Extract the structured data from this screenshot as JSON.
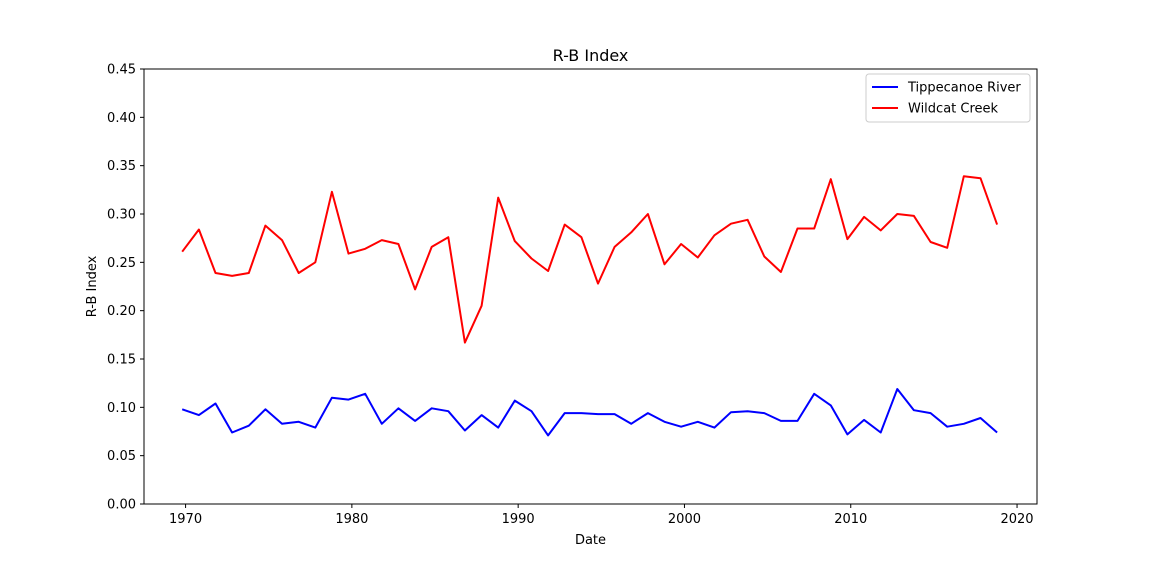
{
  "chart_data": {
    "type": "line",
    "title": "R-B Index",
    "xlabel": "Date",
    "ylabel": "R-B Index",
    "xlim": [
      1967.5,
      2021.2
    ],
    "ylim": [
      0.0,
      0.45
    ],
    "xticks": [
      1970,
      1980,
      1990,
      2000,
      2010,
      2020
    ],
    "yticks": [
      "0.00",
      "0.05",
      "0.10",
      "0.15",
      "0.20",
      "0.25",
      "0.30",
      "0.35",
      "0.40",
      "0.45"
    ],
    "grid": false,
    "legend_position": "top-right",
    "x": [
      1969.8,
      1970.8,
      1971.8,
      1972.8,
      1973.8,
      1974.8,
      1975.8,
      1976.8,
      1977.8,
      1978.8,
      1979.8,
      1980.8,
      1981.8,
      1982.8,
      1983.8,
      1984.8,
      1985.8,
      1986.8,
      1987.8,
      1988.8,
      1989.8,
      1990.8,
      1991.8,
      1992.8,
      1993.8,
      1994.8,
      1995.8,
      1996.8,
      1997.8,
      1998.8,
      1999.8,
      2000.8,
      2001.8,
      2002.8,
      2003.8,
      2004.8,
      2005.8,
      2006.8,
      2007.8,
      2008.8,
      2009.8,
      2010.8,
      2011.8,
      2012.8,
      2013.8,
      2014.8,
      2015.8,
      2016.8,
      2017.8,
      2018.8
    ],
    "series": [
      {
        "name": "Tippecanoe River",
        "color": "#0000ff",
        "values": [
          0.098,
          0.092,
          0.104,
          0.074,
          0.081,
          0.098,
          0.083,
          0.085,
          0.079,
          0.11,
          0.108,
          0.114,
          0.083,
          0.099,
          0.086,
          0.099,
          0.096,
          0.076,
          0.092,
          0.079,
          0.107,
          0.096,
          0.071,
          0.094,
          0.094,
          0.093,
          0.093,
          0.083,
          0.094,
          0.085,
          0.08,
          0.085,
          0.079,
          0.095,
          0.096,
          0.094,
          0.086,
          0.086,
          0.114,
          0.102,
          0.072,
          0.087,
          0.074,
          0.119,
          0.097,
          0.094,
          0.08,
          0.083,
          0.089,
          0.074
        ]
      },
      {
        "name": "Wildcat Creek",
        "color": "#ff0000",
        "values": [
          0.261,
          0.284,
          0.239,
          0.236,
          0.239,
          0.288,
          0.273,
          0.239,
          0.25,
          0.323,
          0.259,
          0.264,
          0.273,
          0.269,
          0.222,
          0.266,
          0.276,
          0.167,
          0.205,
          0.317,
          0.272,
          0.254,
          0.241,
          0.289,
          0.276,
          0.228,
          0.266,
          0.281,
          0.3,
          0.248,
          0.269,
          0.255,
          0.278,
          0.29,
          0.294,
          0.256,
          0.24,
          0.285,
          0.285,
          0.336,
          0.274,
          0.297,
          0.283,
          0.3,
          0.298,
          0.271,
          0.265,
          0.339,
          0.337,
          0.289
        ]
      }
    ]
  }
}
